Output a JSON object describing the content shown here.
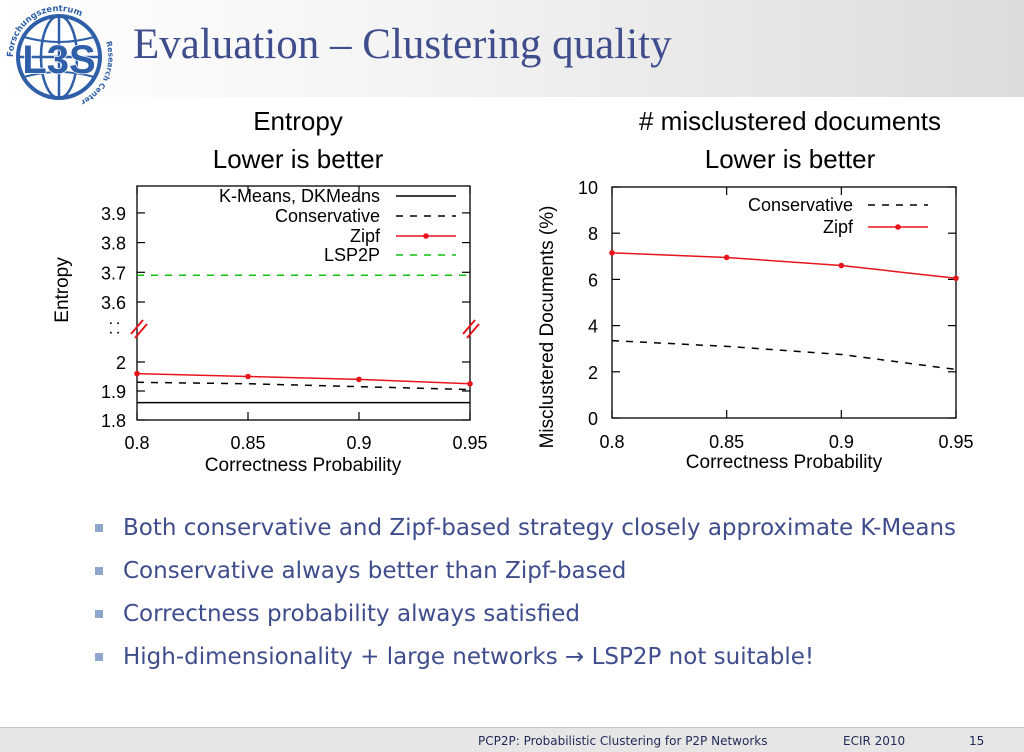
{
  "logo": {
    "text": "L3S",
    "ring_top": "Forschungszentrum",
    "ring_side": "Research Center"
  },
  "title": "Evaluation – Clustering quality",
  "chart_data": [
    {
      "type": "line",
      "title": "Entropy",
      "subtitle": "Lower is better",
      "xlabel": "Correctness Probability",
      "ylabel": "Entropy",
      "xlim": [
        0.8,
        0.95
      ],
      "x_ticks": [
        "0.8",
        "0.85",
        "0.9",
        "0.95"
      ],
      "y_ticks": [
        "1.8",
        "1.9",
        "2",
        "3.6",
        "3.7",
        "3.8",
        "3.9"
      ],
      "axis_break": true,
      "break_mark": ": :",
      "y_lower_range": [
        1.8,
        2.0
      ],
      "y_upper_range": [
        3.6,
        3.9
      ],
      "x": [
        0.8,
        0.85,
        0.9,
        0.95
      ],
      "series": [
        {
          "name": "K-Means, DKMeans",
          "values": [
            1.86,
            1.86,
            1.86,
            1.86
          ],
          "color": "#000000",
          "style": "solid"
        },
        {
          "name": "Conservative",
          "values": [
            1.93,
            1.925,
            1.915,
            1.905
          ],
          "color": "#000000",
          "style": "dashed"
        },
        {
          "name": "Zipf",
          "values": [
            1.96,
            1.95,
            1.94,
            1.925
          ],
          "color": "#e8141c",
          "style": "points"
        },
        {
          "name": "LSP2P",
          "values": [
            3.69,
            3.69,
            3.69,
            3.69
          ],
          "color": "#11c011",
          "style": "dashed"
        }
      ],
      "grid": false,
      "legend_position": "top-right"
    },
    {
      "type": "line",
      "title": "# misclustered documents",
      "subtitle": "Lower is better",
      "xlabel": "Correctness Probability",
      "ylabel": "Misclustered Documents (%)",
      "xlim": [
        0.8,
        0.95
      ],
      "ylim": [
        0,
        10
      ],
      "x_ticks": [
        "0.8",
        "0.85",
        "0.9",
        "0.95"
      ],
      "y_ticks": [
        "0",
        "2",
        "4",
        "6",
        "8",
        "10"
      ],
      "x": [
        0.8,
        0.85,
        0.9,
        0.95
      ],
      "series": [
        {
          "name": "Conservative",
          "values": [
            3.35,
            3.1,
            2.75,
            2.1
          ],
          "color": "#000000",
          "style": "dashed"
        },
        {
          "name": "Zipf",
          "values": [
            7.15,
            6.95,
            6.6,
            6.05
          ],
          "color": "#e8141c",
          "style": "points"
        }
      ],
      "grid": false,
      "legend_position": "top-right"
    }
  ],
  "bullets": [
    "Both conservative and Zipf-based strategy closely approximate K-Means",
    "Conservative always better than Zipf-based",
    "Correctness probability always satisfied",
    "High-dimensionality + large networks → LSP2P not suitable!"
  ],
  "footer": {
    "paper": "PCP2P: Probabilistic Clustering for P2P Networks",
    "venue": "ECIR 2010",
    "page": "15"
  },
  "colors": {
    "title": "#3f4d8c",
    "bullet_text": "#3f4d8c",
    "bullet_marker": "#8ea6cc",
    "zipf": "#e8141c",
    "lsp2p": "#11c011",
    "logo_blue": "#2f5fa8"
  }
}
